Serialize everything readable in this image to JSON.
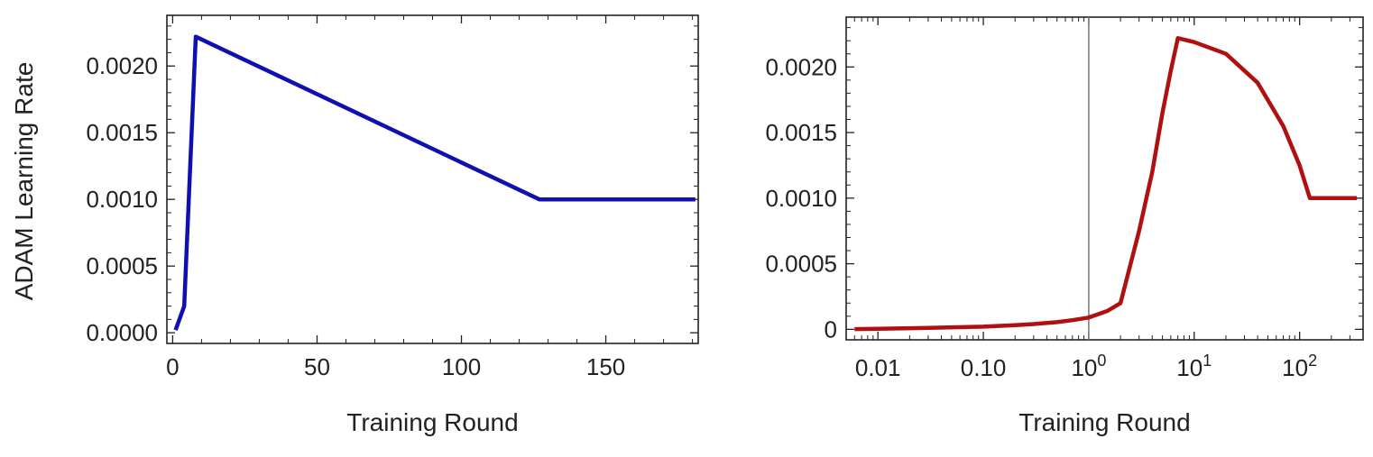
{
  "chart_data": [
    {
      "type": "line",
      "scale": "linear",
      "xlabel": "Training Round",
      "ylabel": "ADAM Learning Rate",
      "xlim": [
        -2,
        182
      ],
      "ylim": [
        -8e-05,
        0.00238
      ],
      "xticks": [
        "0",
        "50",
        "100",
        "150"
      ],
      "yticks": [
        "0.0000",
        "0.0005",
        "0.0010",
        "0.0015",
        "0.0020"
      ],
      "grid": false,
      "series": [
        {
          "color": "#1010b0",
          "x": [
            1,
            4,
            8,
            127,
            181
          ],
          "y": [
            2e-05,
            0.0002,
            0.00222,
            0.001,
            0.001
          ]
        }
      ]
    },
    {
      "type": "line",
      "scale": "log-x",
      "xlabel": "Training Round",
      "ylabel": "",
      "xlim": [
        0.005,
        400
      ],
      "ylim": [
        -8e-05,
        0.00238
      ],
      "xticks": [
        {
          "text": "0.01"
        },
        {
          "text": "0.10"
        },
        {
          "text": "10",
          "sup": "0"
        },
        {
          "text": "10",
          "sup": "1"
        },
        {
          "text": "10",
          "sup": "2"
        }
      ],
      "yticks": [
        "0",
        "0.0005",
        "0.0010",
        "0.0015",
        "0.0020"
      ],
      "reference_line_x": 1,
      "grid": false,
      "series": [
        {
          "color": "#b01010",
          "x": [
            0.006,
            0.01,
            0.03,
            0.1,
            0.2,
            0.3,
            0.5,
            0.7,
            1,
            1.5,
            2,
            3,
            4,
            5,
            6,
            7,
            10,
            20,
            40,
            70,
            100,
            125,
            200,
            350
          ],
          "y": [
            2e-06,
            4e-06,
            1.1e-05,
            2e-05,
            3.2e-05,
            4e-05,
            5.5e-05,
            7e-05,
            9e-05,
            0.00014,
            0.0002,
            0.00075,
            0.0012,
            0.00165,
            0.00197,
            0.00222,
            0.00219,
            0.0021,
            0.00188,
            0.00155,
            0.00125,
            0.001,
            0.001,
            0.001
          ]
        }
      ]
    }
  ]
}
